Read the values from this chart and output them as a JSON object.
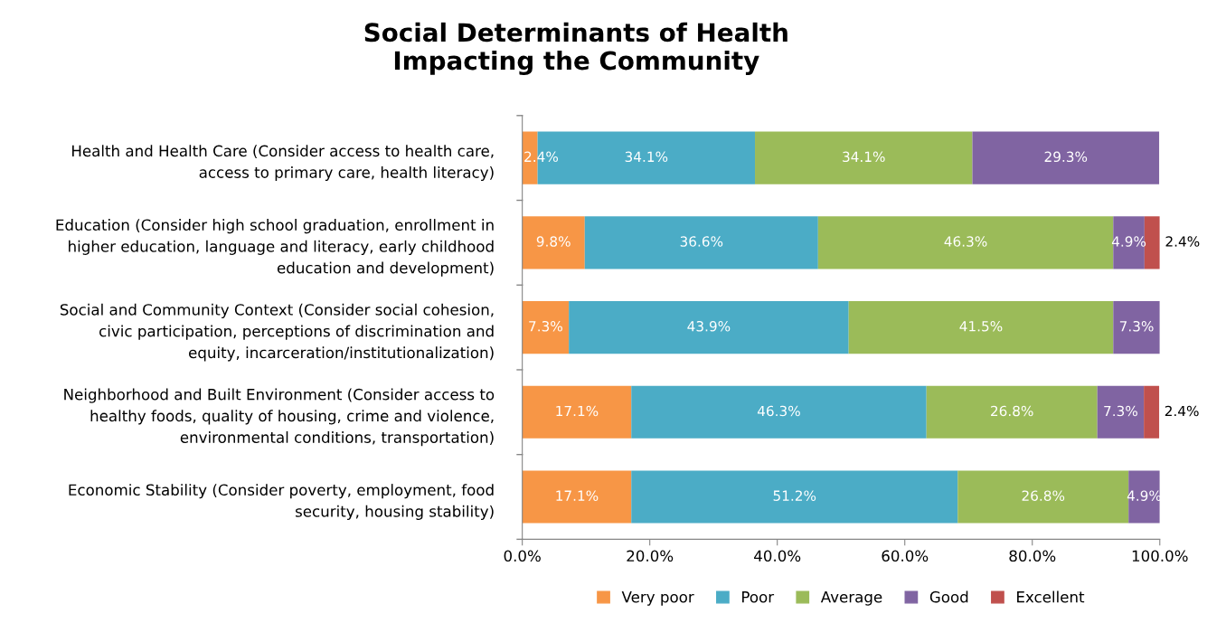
{
  "chart_data": {
    "type": "bar",
    "orientation": "horizontal",
    "stacked": true,
    "title": "Social Determinants of Health\nImpacting the Community",
    "categories": [
      "Health and Health Care (Consider access to health care,\naccess to primary care, health literacy)",
      "Education (Consider high school graduation, enrollment in\nhigher education, language and literacy, early childhood\neducation and development)",
      "Social and Community Context (Consider social cohesion,\ncivic participation, perceptions of discrimination and\nequity, incarceration/institutionalization)",
      "Neighborhood and Built Environment (Consider access to\nhealthy foods, quality of housing, crime and violence,\nenvironmental conditions, transportation)",
      "Economic Stability (Consider poverty, employment, food\nsecurity, housing stability)"
    ],
    "series": [
      {
        "name": "Very poor",
        "color": "#f79646",
        "values": [
          2.4,
          9.8,
          7.3,
          17.1,
          17.1
        ],
        "value_labels": [
          "2.4%",
          "9.8%",
          "7.3%",
          "17.1%",
          "17.1%"
        ]
      },
      {
        "name": "Poor",
        "color": "#4bacc6",
        "values": [
          34.1,
          36.6,
          43.9,
          46.3,
          51.2
        ],
        "value_labels": [
          "34.1%",
          "36.6%",
          "43.9%",
          "46.3%",
          "51.2%"
        ]
      },
      {
        "name": "Average",
        "color": "#9bbb59",
        "values": [
          34.1,
          46.3,
          41.5,
          26.8,
          26.8
        ],
        "value_labels": [
          "34.1%",
          "46.3%",
          "41.5%",
          "26.8%",
          "26.8%"
        ]
      },
      {
        "name": "Good",
        "color": "#8064a2",
        "values": [
          29.3,
          4.9,
          7.3,
          7.3,
          4.9
        ],
        "value_labels": [
          "29.3%",
          "4.9%",
          "7.3%",
          "7.3%",
          "4.9%"
        ]
      },
      {
        "name": "Excellent",
        "color": "#c0504d",
        "values": [
          null,
          2.4,
          null,
          2.4,
          null
        ],
        "value_labels": [
          null,
          "2.4%",
          null,
          "2.4%",
          null
        ]
      }
    ],
    "xlim": [
      0,
      100
    ],
    "xticks": [
      {
        "value": 0,
        "label": "0.0%"
      },
      {
        "value": 20,
        "label": "20.0%"
      },
      {
        "value": 40,
        "label": "40.0%"
      },
      {
        "value": 60,
        "label": "60.0%"
      },
      {
        "value": 80,
        "label": "80.0%"
      },
      {
        "value": 100,
        "label": "100.0%"
      }
    ],
    "legend": "bottom",
    "grid": false
  }
}
